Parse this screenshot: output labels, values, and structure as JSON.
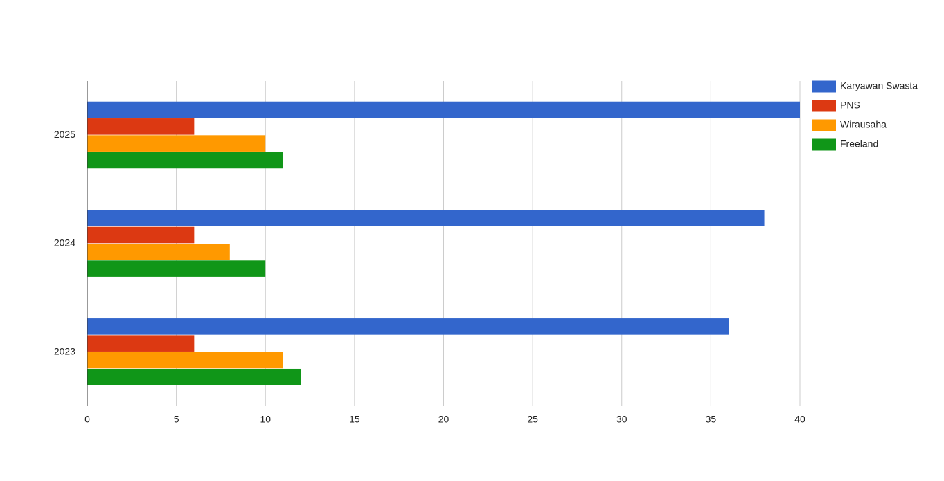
{
  "chart_data": {
    "type": "bar",
    "orientation": "horizontal",
    "categories": [
      "2025",
      "2024",
      "2023"
    ],
    "series": [
      {
        "name": "Karyawan Swasta",
        "color": "#3366cc",
        "values": [
          40,
          38,
          36
        ]
      },
      {
        "name": "PNS",
        "color": "#dc3912",
        "values": [
          6,
          6,
          6
        ]
      },
      {
        "name": "Wirausaha",
        "color": "#ff9900",
        "values": [
          10,
          8,
          11
        ]
      },
      {
        "name": "Freeland",
        "color": "#109618",
        "values": [
          11,
          10,
          12
        ]
      }
    ],
    "xlim": [
      0,
      40
    ],
    "xticks": [
      0,
      5,
      10,
      15,
      20,
      25,
      30,
      35,
      40
    ],
    "grid": true,
    "legend": "right"
  }
}
